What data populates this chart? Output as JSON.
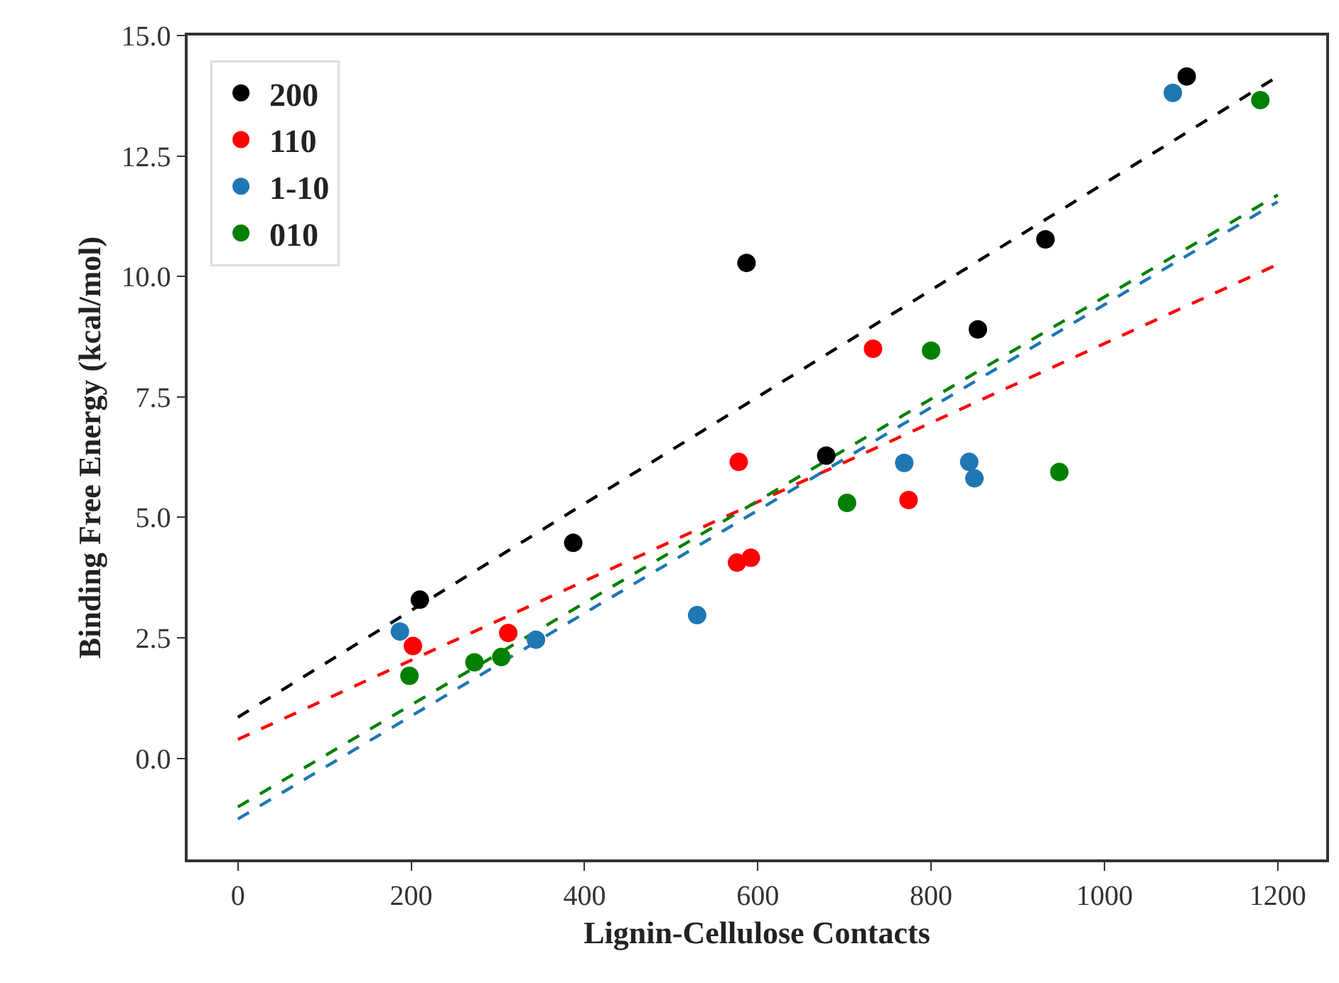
{
  "chart_data": {
    "type": "scatter",
    "xlabel": "Lignin-Cellulose Contacts",
    "ylabel": "Binding Free Energy (kcal/mol)",
    "xlim": [
      -58,
      1256
    ],
    "ylim": [
      -2.1,
      15.0
    ],
    "xticks": [
      0,
      200,
      400,
      600,
      800,
      1000,
      1200
    ],
    "yticks": [
      {
        "value": 0,
        "label": "0.0"
      },
      {
        "value": 2.5,
        "label": "2.5"
      },
      {
        "value": 5,
        "label": "5.0"
      },
      {
        "value": 7.5,
        "label": "7.5"
      },
      {
        "value": 10,
        "label": "10.0"
      },
      {
        "value": 12.5,
        "label": "12.5"
      },
      {
        "value": 15,
        "label": "15.0"
      }
    ],
    "legend": "top left",
    "marker": "circle",
    "series": [
      {
        "name": "200",
        "color": "#000000",
        "x": [
          210,
          387,
          587,
          679,
          854,
          932,
          1095
        ],
        "values": [
          3.29,
          4.47,
          10.28,
          6.28,
          8.9,
          10.77,
          14.15
        ]
      },
      {
        "name": "110",
        "color": "#ff0000",
        "x": [
          202,
          312,
          576,
          592,
          578,
          733,
          774
        ],
        "values": [
          2.33,
          2.6,
          4.06,
          4.16,
          6.15,
          8.5,
          5.36
        ]
      },
      {
        "name": "1-10",
        "color": "#1f77b4",
        "x": [
          187,
          344,
          530,
          769,
          844,
          850,
          1079
        ],
        "values": [
          2.63,
          2.46,
          2.97,
          6.13,
          6.15,
          5.81,
          13.81
        ]
      },
      {
        "name": "010",
        "color": "#008000",
        "x": [
          198,
          273,
          304,
          703,
          800,
          948,
          1180
        ],
        "values": [
          1.71,
          1.99,
          2.1,
          5.3,
          8.46,
          5.94,
          13.66
        ]
      },
      {
        "type": "line",
        "marker": "none",
        "color": "#000000",
        "line_style": "dashed",
        "x": [
          0,
          1200
        ],
        "values": [
          0.85,
          14.15
        ]
      },
      {
        "type": "line",
        "marker": "none",
        "color": "#ff0000",
        "line_style": "dashed",
        "x": [
          0,
          1200
        ],
        "values": [
          0.39,
          10.25
        ]
      },
      {
        "type": "line",
        "marker": "none",
        "color": "#1f77b4",
        "line_style": "dashed",
        "x": [
          0,
          1200
        ],
        "values": [
          -1.26,
          11.55
        ]
      },
      {
        "type": "line",
        "marker": "none",
        "color": "#008000",
        "line_style": "dashed",
        "x": [
          0,
          1200
        ],
        "values": [
          -1.01,
          11.69
        ]
      }
    ]
  }
}
